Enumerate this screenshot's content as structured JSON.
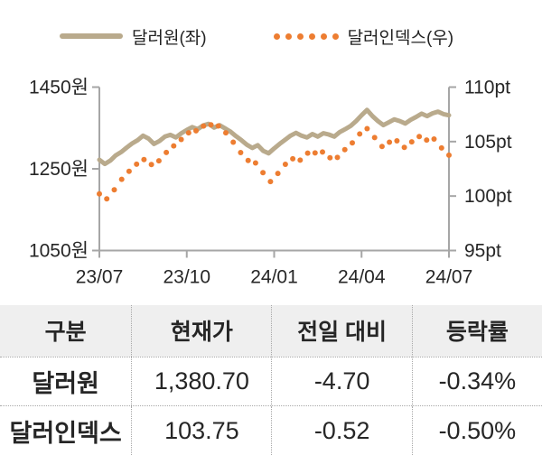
{
  "legend": {
    "series1_label": "달러원(좌)",
    "series2_label": "달러인덱스(우)"
  },
  "chart_data": {
    "type": "line",
    "title": "",
    "xlabel": "",
    "ylabel_left": "원",
    "ylabel_right": "pt",
    "grid": false,
    "legend_position": "top",
    "x_ticks": [
      "23/07",
      "23/10",
      "24/01",
      "24/04",
      "24/07"
    ],
    "left_axis": {
      "tick_labels": [
        "1450원",
        "1250원",
        "1050원"
      ],
      "min": 1050,
      "max": 1450
    },
    "right_axis": {
      "tick_labels": [
        "110pt",
        "105pt",
        "100pt",
        "95pt"
      ],
      "min": 95,
      "max": 110
    },
    "series": [
      {
        "name": "달러원(좌)",
        "axis": "left",
        "style": "line",
        "color": "#b9aa8c",
        "values": [
          1272,
          1262,
          1270,
          1283,
          1291,
          1302,
          1312,
          1320,
          1331,
          1324,
          1311,
          1318,
          1329,
          1333,
          1327,
          1337,
          1345,
          1352,
          1347,
          1356,
          1360,
          1351,
          1357,
          1349,
          1341,
          1330,
          1320,
          1309,
          1301,
          1308,
          1294,
          1288,
          1300,
          1311,
          1321,
          1331,
          1338,
          1331,
          1327,
          1335,
          1329,
          1337,
          1334,
          1329,
          1340,
          1347,
          1355,
          1367,
          1381,
          1394,
          1379,
          1367,
          1357,
          1364,
          1371,
          1367,
          1361,
          1370,
          1377,
          1385,
          1379,
          1386,
          1390,
          1384,
          1381
        ]
      },
      {
        "name": "달러인덱스(우)",
        "axis": "right",
        "style": "dots",
        "color": "#ed7d31",
        "values": [
          100.2,
          99.6,
          100.0,
          100.8,
          101.5,
          102.0,
          102.6,
          103.0,
          103.4,
          103.1,
          102.7,
          103.3,
          103.9,
          104.3,
          104.8,
          105.2,
          105.6,
          106.2,
          105.9,
          106.4,
          106.8,
          106.2,
          106.5,
          105.9,
          105.3,
          104.6,
          103.9,
          103.4,
          102.8,
          103.2,
          102.1,
          101.2,
          101.6,
          102.3,
          102.9,
          103.3,
          103.6,
          103.2,
          103.9,
          104.2,
          103.7,
          104.1,
          103.6,
          103.2,
          103.8,
          104.3,
          104.7,
          105.3,
          105.9,
          106.2,
          105.6,
          105.0,
          104.4,
          104.9,
          105.3,
          104.8,
          104.4,
          104.9,
          105.3,
          105.6,
          105.1,
          105.4,
          104.8,
          104.2,
          103.75
        ]
      }
    ]
  },
  "table": {
    "headers": [
      "구분",
      "현재가",
      "전일 대비",
      "등락률"
    ],
    "rows": [
      [
        "달러원",
        "1,380.70",
        "-4.70",
        "-0.34%"
      ],
      [
        "달러인덱스",
        "103.75",
        "-0.52",
        "-0.50%"
      ]
    ]
  },
  "colors": {
    "usdkrw_line": "#b9aa8c",
    "dollar_index_dots": "#ed7d31",
    "axis": "#a6a6a6",
    "text": "#262626",
    "table_header_bg": "#efefef",
    "table_divider": "#a9a9a9"
  }
}
